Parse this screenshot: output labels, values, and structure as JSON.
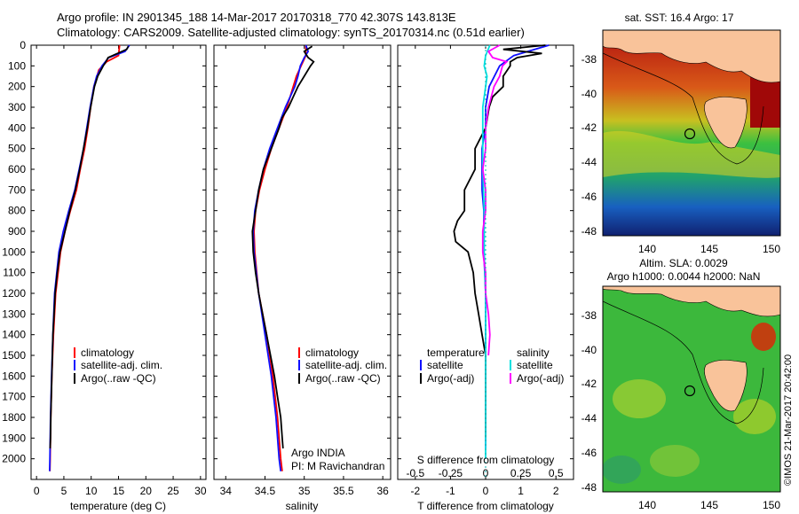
{
  "header": {
    "line1": "Argo profile: IN 2901345_188 14-Mar-2017 20170318_770 42.307S 143.813E",
    "line2": "Climatology: CARS2009. Satellite-adjusted climatology: synTS_20170314.nc (0.51d earlier)"
  },
  "colors": {
    "climatology": "#ff0000",
    "satellite": "#1010ff",
    "argo": "#000000",
    "sal_sat": "#00e0e0",
    "sal_argo": "#ff00ff"
  },
  "chart_data": [
    {
      "type": "line",
      "id": "temperature",
      "xlabel": "temperature (deg C)",
      "xlim": [
        -1,
        31
      ],
      "xticks": [
        0,
        5,
        10,
        15,
        20,
        25,
        30
      ],
      "ylim": [
        2100,
        0
      ],
      "yticks": [
        0,
        100,
        200,
        300,
        400,
        500,
        600,
        700,
        800,
        900,
        1000,
        1100,
        1200,
        1300,
        1400,
        1500,
        1600,
        1700,
        1800,
        1900,
        2000
      ],
      "legend": [
        "climatology",
        "satellite-adj. clim.",
        "Argo(..raw -QC)"
      ],
      "legend_position": "lower-center",
      "series": [
        {
          "name": "climatology",
          "depth": [
            0,
            50,
            80,
            120,
            200,
            300,
            400,
            500,
            600,
            700,
            800,
            900,
            1000,
            1200,
            1400,
            1600,
            1800,
            2000,
            2060
          ],
          "values": [
            15.2,
            15,
            12.8,
            11.4,
            10.5,
            9.9,
            9.4,
            8.8,
            8,
            7.3,
            6.2,
            5.2,
            4.4,
            3.5,
            3.1,
            2.8,
            2.6,
            2.5,
            2.45
          ]
        },
        {
          "name": "satellite-adj. clim.",
          "depth": [
            0,
            30,
            60,
            100,
            150,
            200,
            300,
            400,
            500,
            600,
            700,
            800,
            900,
            1000,
            1200,
            1400,
            1600,
            1800,
            2000,
            2060
          ],
          "values": [
            17,
            16.2,
            13.2,
            12,
            11,
            10.5,
            9.8,
            9.2,
            8.6,
            7.8,
            7,
            5.9,
            4.9,
            4.1,
            3.3,
            3,
            2.75,
            2.55,
            2.45,
            2.4
          ]
        },
        {
          "name": "Argo(..raw -QC)",
          "depth": [
            5,
            20,
            40,
            60,
            80,
            100,
            150,
            200,
            300,
            400,
            500,
            600,
            700,
            800,
            900,
            1000,
            1100,
            1200,
            1300,
            1400,
            1500,
            1600,
            1700,
            1800,
            1900,
            1950
          ],
          "values": [
            16.8,
            16.5,
            14.8,
            13.1,
            12.7,
            12.2,
            11.2,
            10.6,
            9.9,
            9.3,
            8.6,
            7.9,
            7.1,
            6.1,
            5.2,
            4.3,
            3.8,
            3.4,
            3.2,
            3,
            2.9,
            2.8,
            2.7,
            2.6,
            2.55,
            2.5
          ]
        }
      ]
    },
    {
      "type": "line",
      "id": "salinity",
      "xlabel": "salinity",
      "xlim": [
        33.85,
        36.1
      ],
      "xticks": [
        34,
        34.5,
        35,
        35.5,
        36
      ],
      "ylim": [
        2100,
        0
      ],
      "legend": [
        "climatology",
        "satellite-adj. clim.",
        "Argo(..raw -QC)"
      ],
      "legend_position": "lower-center",
      "annotations": [
        "Argo INDIA",
        "PI: M Ravichandran"
      ],
      "series": [
        {
          "name": "climatology",
          "depth": [
            0,
            50,
            100,
            150,
            200,
            300,
            400,
            500,
            600,
            700,
            800,
            900,
            1000,
            1200,
            1400,
            1600,
            1800,
            2000,
            2060
          ],
          "values": [
            35.02,
            35.02,
            34.96,
            34.9,
            34.86,
            34.78,
            34.68,
            34.58,
            34.5,
            34.43,
            34.38,
            34.36,
            34.37,
            34.42,
            34.52,
            34.6,
            34.66,
            34.7,
            34.72
          ]
        },
        {
          "name": "satellite-adj. clim.",
          "depth": [
            0,
            30,
            60,
            100,
            150,
            200,
            300,
            400,
            500,
            600,
            700,
            800,
            900,
            1000,
            1200,
            1400,
            1600,
            1800,
            2000,
            2060
          ],
          "values": [
            35.02,
            35.05,
            35.0,
            34.95,
            34.92,
            34.88,
            34.76,
            34.66,
            34.56,
            34.48,
            34.42,
            34.37,
            34.35,
            34.36,
            34.42,
            34.5,
            34.58,
            34.64,
            34.68,
            34.7
          ]
        },
        {
          "name": "Argo(..raw -QC)",
          "depth": [
            5,
            30,
            60,
            80,
            100,
            150,
            200,
            250,
            300,
            350,
            400,
            500,
            600,
            700,
            800,
            900,
            1000,
            1100,
            1200,
            1300,
            1400,
            1500,
            1600,
            1700,
            1800,
            1900,
            1950
          ],
          "values": [
            35.1,
            35.0,
            35.05,
            35.12,
            35.08,
            35.0,
            34.92,
            34.86,
            34.8,
            34.72,
            34.68,
            34.58,
            34.48,
            34.42,
            34.38,
            34.34,
            34.35,
            34.38,
            34.42,
            34.47,
            34.52,
            34.57,
            34.62,
            34.66,
            34.7,
            34.72,
            34.73
          ]
        }
      ]
    },
    {
      "type": "line",
      "id": "difference",
      "xlabel": "T difference from climatology",
      "xlabel_top": "S difference from climatology",
      "xlim": [
        -2.5,
        2.5
      ],
      "xticks": [
        -2,
        -1,
        0,
        1,
        2
      ],
      "sticks": [
        -0.5,
        -0.25,
        0,
        0.25,
        0.5
      ],
      "ylim": [
        2100,
        0
      ],
      "legend_temperature": {
        "heading": "temperature",
        "items": [
          "satellite",
          "Argo(-adj)"
        ]
      },
      "legend_salinity": {
        "heading": "salinity",
        "items": [
          "satellite",
          "Argo(-adj)"
        ]
      },
      "series": [
        {
          "name": "temperature satellite",
          "depth": [
            0,
            50,
            100,
            200,
            300,
            400,
            500,
            600,
            700,
            800,
            900,
            1000,
            1200,
            1500,
            1800,
            1950
          ],
          "values": [
            1.8,
            0.8,
            0.4,
            0.1,
            0.0,
            0.0,
            -0.1,
            -0.1,
            -0.1,
            -0.05,
            -0.05,
            -0.05,
            0.0,
            0.0,
            0.0,
            0.0
          ]
        },
        {
          "name": "temperature Argo(-adj)",
          "depth": [
            0,
            20,
            40,
            60,
            80,
            100,
            150,
            200,
            250,
            300,
            400,
            500,
            600,
            700,
            800,
            850,
            900,
            950,
            1000,
            1100,
            1200,
            1300,
            1400,
            1500,
            1600,
            1800,
            1900
          ],
          "values": [
            1.7,
            0.5,
            1.6,
            0.9,
            0.7,
            0.7,
            0.5,
            0.5,
            0.2,
            0.1,
            0.0,
            -0.3,
            -0.3,
            -0.6,
            -0.6,
            -0.8,
            -0.9,
            -0.85,
            -0.5,
            -0.35,
            -0.3,
            -0.2,
            -0.1,
            0.0,
            0.0,
            0.0,
            0.0
          ]
        },
        {
          "name": "salinity satellite",
          "depth": [
            0,
            50,
            100,
            150,
            200,
            300,
            400,
            600,
            800,
            1000,
            1200,
            1500,
            1800,
            2000
          ],
          "values": [
            0.03,
            0.0,
            -0.01,
            0.01,
            0.0,
            -0.02,
            -0.02,
            -0.02,
            -0.01,
            -0.01,
            0.0,
            0.0,
            0.0,
            0.0
          ]
        },
        {
          "name": "salinity Argo(-adj)",
          "depth": [
            0,
            30,
            60,
            80,
            100,
            150,
            200,
            300,
            400,
            500,
            600,
            700,
            800,
            900,
            1000,
            1100,
            1200,
            1300,
            1400,
            1500
          ],
          "values": [
            0.1,
            0.02,
            0.05,
            0.15,
            0.12,
            0.1,
            0.06,
            0.02,
            0.0,
            0.0,
            -0.02,
            0.0,
            0.0,
            -0.02,
            -0.02,
            0.0,
            0.0,
            0.02,
            0.03,
            0.02
          ]
        }
      ]
    }
  ],
  "maps": {
    "sst": {
      "title": "sat. SST: 16.4  Argo: 17",
      "lat_ticks": [
        "-38",
        "-40",
        "-42",
        "-44",
        "-46",
        "-48"
      ],
      "lon_ticks": [
        "140",
        "145",
        "150"
      ]
    },
    "sla": {
      "title1": "Altim. SLA: 0.0029",
      "title2": "Argo h1000: 0.0044  h2000: NaN",
      "lat_ticks": [
        "-38",
        "-40",
        "-42",
        "-44",
        "-46",
        "-48"
      ],
      "lon_ticks": [
        "140",
        "145",
        "150"
      ],
      "credit": "©IMOS 21-Mar-2017 20:42:00"
    }
  }
}
